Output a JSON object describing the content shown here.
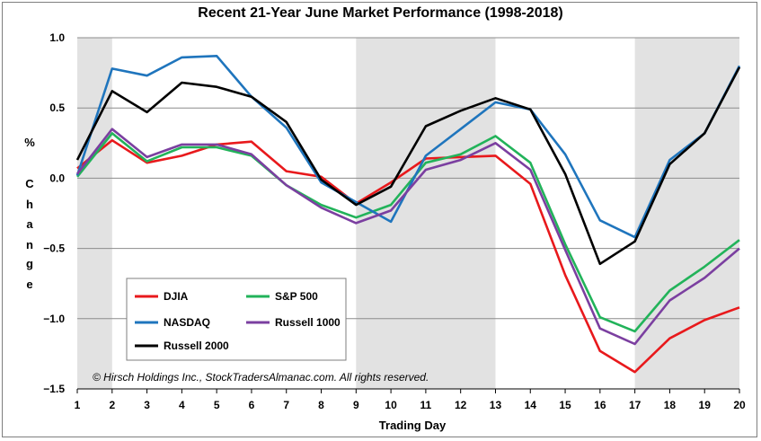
{
  "chart_data": {
    "type": "line",
    "title": "Recent 21-Year June Market Performance (1998-2018)",
    "xlabel": "Trading Day",
    "ylabel_chars": [
      "%",
      "C",
      "h",
      "a",
      "n",
      "g",
      "e"
    ],
    "x": [
      1,
      2,
      3,
      4,
      5,
      6,
      7,
      8,
      9,
      10,
      11,
      12,
      13,
      14,
      15,
      16,
      17,
      18,
      19,
      20
    ],
    "x_tick_labels": [
      "1",
      "2",
      "3",
      "4",
      "5",
      "6",
      "7",
      "8",
      "9",
      "10",
      "11",
      "12",
      "13",
      "14",
      "15",
      "16",
      "17",
      "18",
      "19",
      "20"
    ],
    "ylim": [
      -1.5,
      1.0
    ],
    "y_tick_values": [
      1.0,
      0.5,
      0.0,
      -0.5,
      -1.0,
      -1.5
    ],
    "y_tick_labels": [
      "1.0",
      "0.5",
      "0.0",
      "−0.5",
      "−1.0",
      "−1.5"
    ],
    "grid": "horizontal",
    "shaded_ranges": [
      [
        1,
        2
      ],
      [
        9,
        13
      ],
      [
        17,
        20
      ]
    ],
    "legend_position": "bottom-left",
    "copyright": "© Hirsch Holdings Inc., StockTradersAlmanac.com.  All rights reserved.",
    "series": [
      {
        "name": "DJIA",
        "color": "#e8191c",
        "values": [
          0.07,
          0.27,
          0.11,
          0.16,
          0.24,
          0.26,
          0.05,
          0.01,
          -0.18,
          -0.03,
          0.14,
          0.15,
          0.16,
          -0.04,
          -0.69,
          -1.23,
          -1.38,
          -1.14,
          -1.01,
          -0.92
        ]
      },
      {
        "name": "S&P 500",
        "color": "#22b35a",
        "values": [
          0.01,
          0.32,
          0.12,
          0.22,
          0.22,
          0.16,
          -0.05,
          -0.19,
          -0.28,
          -0.19,
          0.11,
          0.17,
          0.3,
          0.11,
          -0.47,
          -0.99,
          -1.09,
          -0.8,
          -0.63,
          -0.44
        ]
      },
      {
        "name": "NASDAQ",
        "color": "#1f75bd",
        "values": [
          0.02,
          0.78,
          0.73,
          0.86,
          0.87,
          0.58,
          0.36,
          -0.03,
          -0.17,
          -0.31,
          0.16,
          0.35,
          0.54,
          0.49,
          0.17,
          -0.3,
          -0.42,
          0.13,
          0.32,
          0.8
        ]
      },
      {
        "name": "Russell 1000",
        "color": "#7b3fa0",
        "values": [
          0.03,
          0.35,
          0.15,
          0.24,
          0.24,
          0.17,
          -0.05,
          -0.21,
          -0.32,
          -0.23,
          0.06,
          0.13,
          0.25,
          0.06,
          -0.51,
          -1.07,
          -1.18,
          -0.87,
          -0.71,
          -0.5
        ]
      },
      {
        "name": "Russell 2000",
        "color": "#000000",
        "values": [
          0.13,
          0.62,
          0.47,
          0.68,
          0.65,
          0.58,
          0.4,
          -0.01,
          -0.19,
          -0.06,
          0.37,
          0.48,
          0.57,
          0.49,
          0.03,
          -0.61,
          -0.45,
          0.1,
          0.32,
          0.79
        ]
      }
    ]
  }
}
